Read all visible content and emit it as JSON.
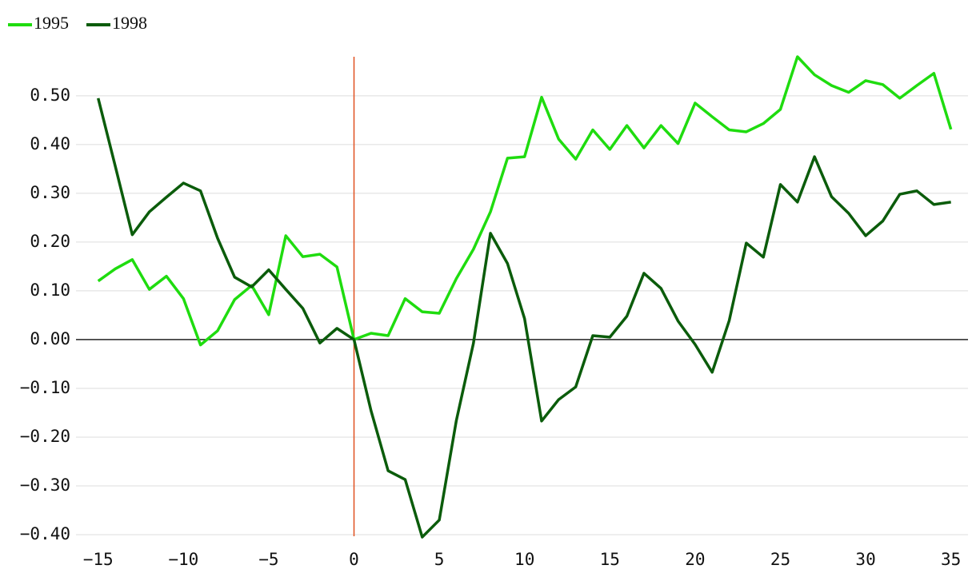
{
  "chart_data": {
    "type": "line",
    "x": [
      -15,
      -14,
      -13,
      -12,
      -11,
      -10,
      -9,
      -8,
      -7,
      -6,
      -5,
      -4,
      -3,
      -2,
      -1,
      0,
      1,
      2,
      3,
      4,
      5,
      6,
      7,
      8,
      9,
      10,
      11,
      12,
      13,
      14,
      15,
      16,
      17,
      18,
      19,
      20,
      21,
      22,
      23,
      24,
      25,
      26,
      27,
      28,
      29,
      30,
      31,
      32,
      33,
      34,
      35
    ],
    "series": [
      {
        "name": "1995",
        "color": "#1fdc0f",
        "values": [
          0.12,
          0.145,
          0.164,
          0.103,
          0.13,
          0.084,
          -0.011,
          0.018,
          0.082,
          0.111,
          0.051,
          0.213,
          0.17,
          0.175,
          0.149,
          0,
          0.013,
          0.008,
          0.084,
          0.057,
          0.054,
          0.125,
          0.185,
          0.262,
          0.372,
          0.375,
          0.497,
          0.411,
          0.37,
          0.43,
          0.39,
          0.439,
          0.393,
          0.439,
          0.402,
          0.485,
          0.457,
          0.43,
          0.426,
          0.443,
          0.472,
          0.58,
          0.543,
          0.521,
          0.507,
          0.531,
          0.523,
          0.495,
          0.521,
          0.546,
          0.431
        ]
      },
      {
        "name": "1998",
        "color": "#0b5c0b",
        "values": [
          0.495,
          0.356,
          0.215,
          0.262,
          0.292,
          0.321,
          0.305,
          0.208,
          0.128,
          0.108,
          0.143,
          0.103,
          0.064,
          -0.007,
          0.023,
          0,
          -0.146,
          -0.269,
          -0.287,
          -0.405,
          -0.37,
          -0.166,
          -0.008,
          0.218,
          0.156,
          0.043,
          -0.167,
          -0.123,
          -0.097,
          0.008,
          0.005,
          0.048,
          0.136,
          0.105,
          0.038,
          -0.01,
          -0.067,
          0.039,
          0.198,
          0.169,
          0.318,
          0.282,
          0.375,
          0.293,
          0.259,
          0.213,
          0.243,
          0.298,
          0.305,
          0.277,
          0.282
        ]
      }
    ],
    "xlim": [
      -16.3,
      36
    ],
    "ylim": [
      -0.4,
      0.58
    ],
    "xticks": [
      {
        "value": -15,
        "label": "−15"
      },
      {
        "value": -10,
        "label": "−10"
      },
      {
        "value": -5,
        "label": "−5"
      },
      0,
      5,
      10,
      15,
      20,
      25,
      30,
      35
    ],
    "yticks": [
      {
        "value": -0.4,
        "label": "−0.40"
      },
      {
        "value": -0.3,
        "label": "−0.30"
      },
      {
        "value": -0.2,
        "label": "−0.20"
      },
      {
        "value": -0.1,
        "label": "−0.10"
      },
      {
        "value": 0,
        "label": "0.00"
      },
      {
        "value": 0.1,
        "label": "0.10"
      },
      {
        "value": 0.2,
        "label": "0.20"
      },
      {
        "value": 0.3,
        "label": "0.30"
      },
      {
        "value": 0.4,
        "label": "0.40"
      },
      {
        "value": 0.5,
        "label": "0.50"
      }
    ],
    "grid": true,
    "vline": {
      "value": 0,
      "color": "#e0501f"
    },
    "legend": "top-left"
  }
}
